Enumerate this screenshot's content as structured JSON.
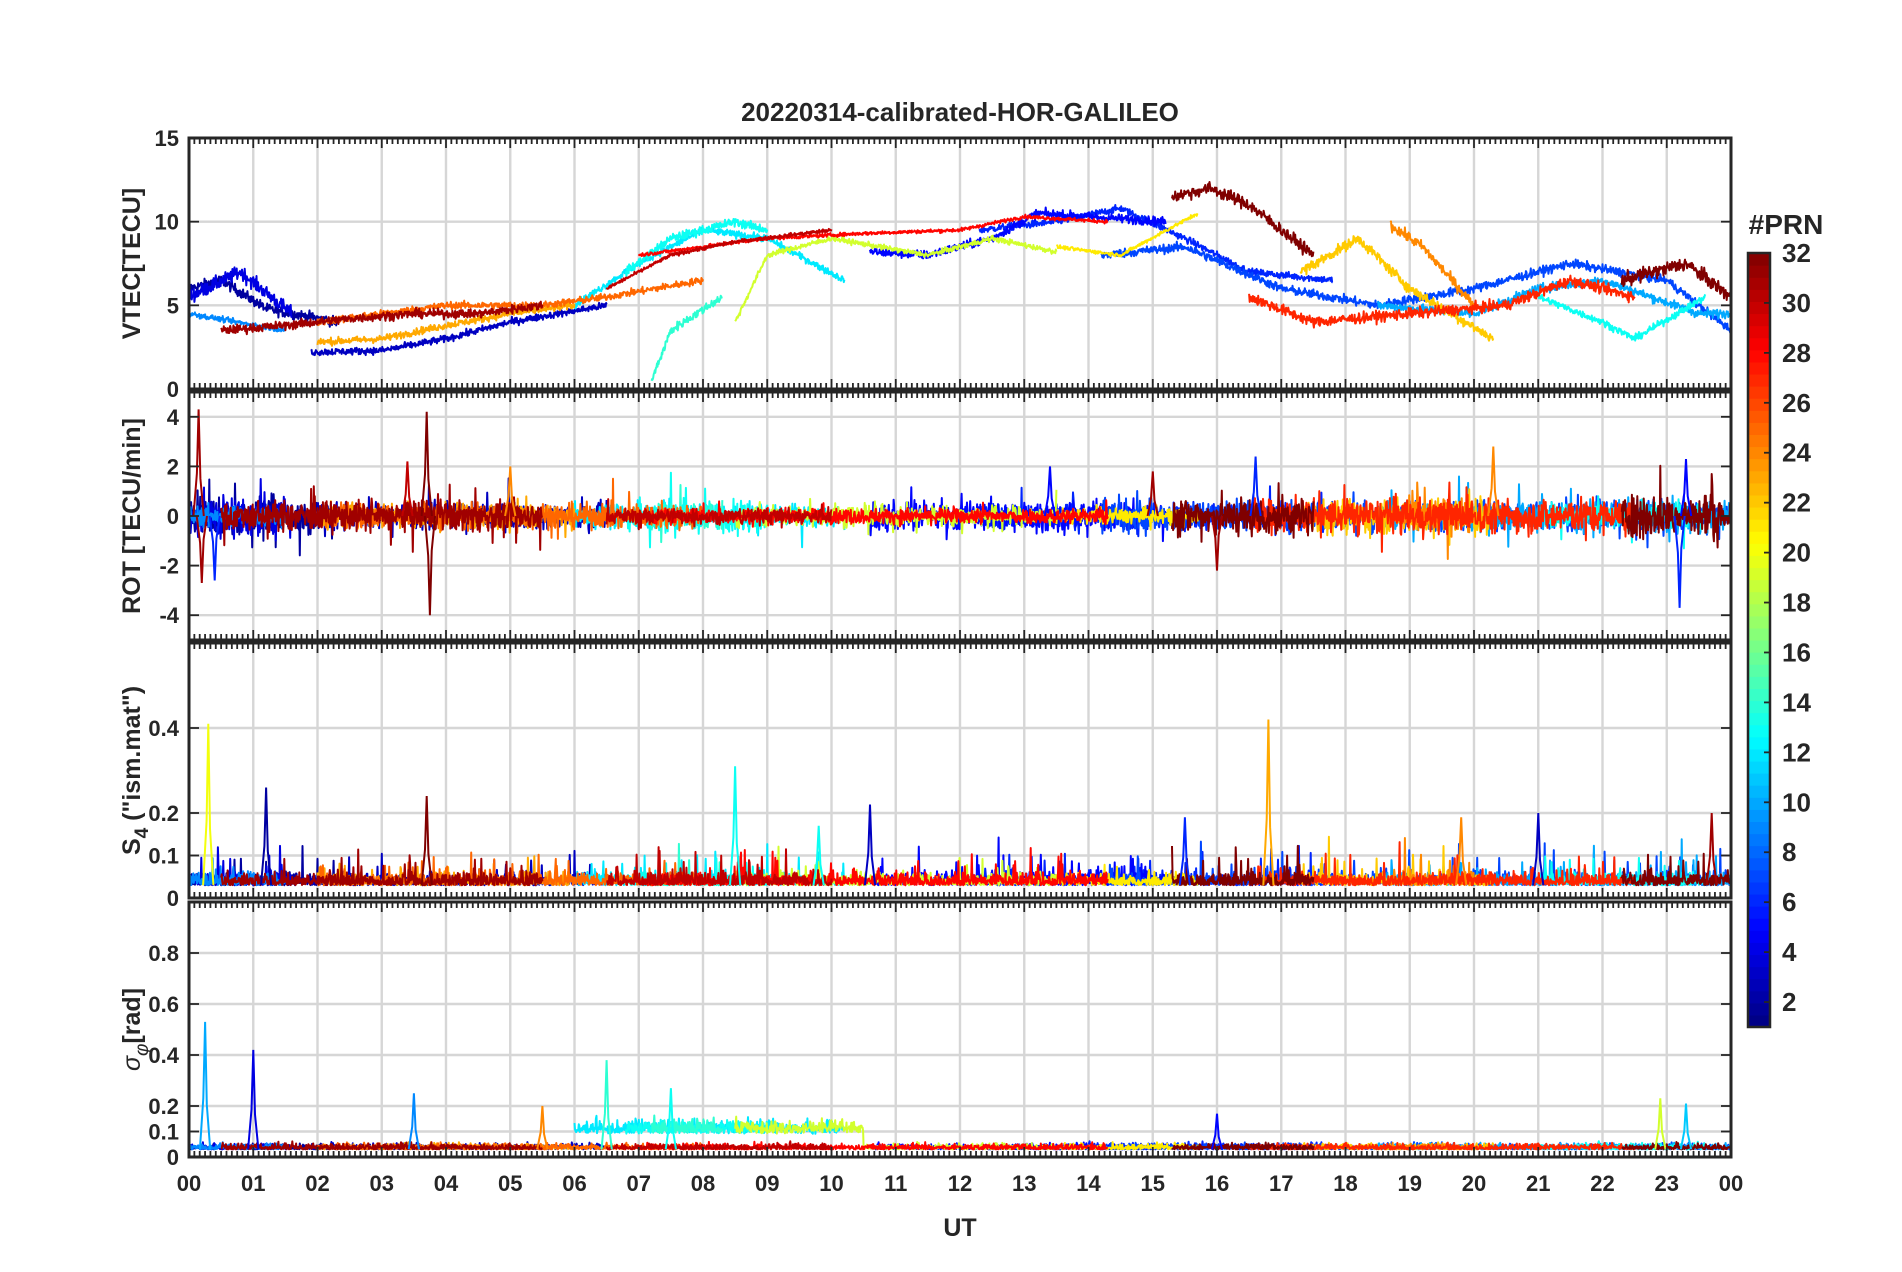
{
  "chart_data": {
    "type": "line",
    "title": "20220314-calibrated-HOR-GALILEO",
    "xlabel": "UT",
    "x_ticks": [
      "00",
      "01",
      "02",
      "03",
      "04",
      "05",
      "06",
      "07",
      "08",
      "09",
      "10",
      "11",
      "12",
      "13",
      "14",
      "15",
      "16",
      "17",
      "18",
      "19",
      "20",
      "21",
      "22",
      "23",
      "00"
    ],
    "xlim_hours": [
      0,
      24
    ],
    "colorbar": {
      "title": "#PRN",
      "range": [
        1,
        32
      ],
      "ticks": [
        2,
        4,
        6,
        8,
        10,
        12,
        14,
        16,
        18,
        20,
        22,
        24,
        26,
        28,
        30,
        32
      ],
      "colormap": "jet"
    },
    "panels": [
      {
        "id": "vtec",
        "ylabel": "VTEC[TECU]",
        "ylim": [
          0,
          15
        ],
        "yticks": [
          0,
          5,
          10,
          15
        ],
        "series": [
          {
            "prn": 2,
            "segment_hours": [
              0.0,
              2.3
            ],
            "trend": [
              [
                0.0,
                6.0
              ],
              [
                0.5,
                6.5
              ],
              [
                1.2,
                4.8
              ],
              [
                2.3,
                4.0
              ]
            ],
            "noise": 0.6
          },
          {
            "prn": 4,
            "segment_hours": [
              0.0,
              1.6
            ],
            "trend": [
              [
                0.0,
                5.5
              ],
              [
                0.8,
                7.0
              ],
              [
                1.6,
                4.5
              ]
            ],
            "noise": 0.8
          },
          {
            "prn": 6,
            "segment_hours": [
              12.3,
              17.8
            ],
            "trend": [
              [
                12.3,
                9.5
              ],
              [
                13.5,
                10.0
              ],
              [
                14.5,
                10.8
              ],
              [
                15.5,
                9.0
              ],
              [
                16.5,
                7.0
              ],
              [
                17.8,
                6.5
              ]
            ],
            "noise": 0.4
          },
          {
            "prn": 5,
            "segment_hours": [
              10.6,
              15.2
            ],
            "trend": [
              [
                10.6,
                8.2
              ],
              [
                11.5,
                8.0
              ],
              [
                12.5,
                9.0
              ],
              [
                13.2,
                10.5
              ],
              [
                14.0,
                10.3
              ],
              [
                15.2,
                10.0
              ]
            ],
            "noise": 0.5
          },
          {
            "prn": 3,
            "segment_hours": [
              1.9,
              6.5
            ],
            "trend": [
              [
                1.9,
                2.2
              ],
              [
                3.0,
                2.3
              ],
              [
                4.0,
                3.0
              ],
              [
                5.0,
                4.0
              ],
              [
                6.5,
                5.0
              ]
            ],
            "noise": 0.4
          },
          {
            "prn": 7,
            "segment_hours": [
              14.2,
              24.0
            ],
            "trend": [
              [
                14.2,
                8.0
              ],
              [
                15.5,
                8.5
              ],
              [
                17.0,
                6.0
              ],
              [
                18.5,
                5.0
              ],
              [
                20.0,
                6.0
              ],
              [
                21.5,
                7.5
              ],
              [
                23.0,
                6.5
              ],
              [
                24.0,
                3.5
              ]
            ],
            "noise": 0.5
          },
          {
            "prn": 9,
            "segment_hours": [
              0.0,
              1.5
            ],
            "trend": [
              [
                0.0,
                4.5
              ],
              [
                1.5,
                3.5
              ]
            ],
            "noise": 0.3
          },
          {
            "prn": 10,
            "segment_hours": [
              18.5,
              24.0
            ],
            "trend": [
              [
                18.5,
                5.0
              ],
              [
                20.0,
                4.5
              ],
              [
                21.0,
                6.0
              ],
              [
                22.0,
                6.5
              ],
              [
                23.5,
                4.5
              ],
              [
                24.0,
                4.5
              ]
            ],
            "noise": 0.5
          },
          {
            "prn": 12,
            "segment_hours": [
              6.0,
              10.2
            ],
            "trend": [
              [
                6.0,
                5.0
              ],
              [
                7.0,
                7.5
              ],
              [
                8.0,
                9.5
              ],
              [
                9.0,
                9.0
              ],
              [
                10.2,
                6.5
              ]
            ],
            "noise": 0.4
          },
          {
            "prn": 13,
            "segment_hours": [
              6.8,
              9.0
            ],
            "trend": [
              [
                6.8,
                7.0
              ],
              [
                7.5,
                9.0
              ],
              [
                8.5,
                10.0
              ],
              [
                9.0,
                9.5
              ]
            ],
            "noise": 0.5
          },
          {
            "prn": 13,
            "segment_hours": [
              21.0,
              23.6
            ],
            "trend": [
              [
                21.0,
                5.5
              ],
              [
                22.0,
                4.0
              ],
              [
                22.5,
                3.0
              ],
              [
                23.6,
                5.5
              ]
            ],
            "noise": 0.4
          },
          {
            "prn": 14,
            "segment_hours": [
              7.2,
              8.3
            ],
            "trend": [
              [
                7.2,
                0.5
              ],
              [
                7.5,
                3.5
              ],
              [
                8.3,
                5.5
              ]
            ],
            "noise": 0.5
          },
          {
            "prn": 19,
            "segment_hours": [
              8.5,
              13.5
            ],
            "trend": [
              [
                8.5,
                4.0
              ],
              [
                9.0,
                8.0
              ],
              [
                10.0,
                9.0
              ],
              [
                11.5,
                8.0
              ],
              [
                12.5,
                9.0
              ],
              [
                13.5,
                8.2
              ]
            ],
            "noise": 0.3
          },
          {
            "prn": 21,
            "segment_hours": [
              13.5,
              15.7
            ],
            "trend": [
              [
                13.5,
                8.5
              ],
              [
                14.5,
                8.0
              ],
              [
                15.7,
                10.5
              ]
            ],
            "noise": 0.2
          },
          {
            "prn": 22,
            "segment_hours": [
              17.3,
              20.3
            ],
            "trend": [
              [
                17.3,
                7.0
              ],
              [
                18.2,
                9.0
              ],
              [
                19.0,
                6.0
              ],
              [
                20.3,
                3.0
              ]
            ],
            "noise": 0.6
          },
          {
            "prn": 23,
            "segment_hours": [
              2.0,
              6.0
            ],
            "trend": [
              [
                2.0,
                2.8
              ],
              [
                3.0,
                3.0
              ],
              [
                4.0,
                3.8
              ],
              [
                5.0,
                4.5
              ],
              [
                6.0,
                5.0
              ]
            ],
            "noise": 0.4
          },
          {
            "prn": 24,
            "segment_hours": [
              18.7,
              20.0
            ],
            "trend": [
              [
                18.7,
                9.8
              ],
              [
                19.2,
                8.5
              ],
              [
                20.0,
                5.0
              ]
            ],
            "noise": 0.6
          },
          {
            "prn": 25,
            "segment_hours": [
              2.0,
              8.0
            ],
            "trend": [
              [
                2.0,
                4.0
              ],
              [
                3.0,
                4.5
              ],
              [
                4.0,
                5.0
              ],
              [
                5.5,
                5.0
              ],
              [
                6.5,
                5.5
              ],
              [
                8.0,
                6.5
              ]
            ],
            "noise": 0.4
          },
          {
            "prn": 27,
            "segment_hours": [
              16.5,
              22.5
            ],
            "trend": [
              [
                16.5,
                5.5
              ],
              [
                17.5,
                4.0
              ],
              [
                19.0,
                4.5
              ],
              [
                20.5,
                5.0
              ],
              [
                21.5,
                6.5
              ],
              [
                22.5,
                5.5
              ]
            ],
            "noise": 0.6
          },
          {
            "prn": 28,
            "segment_hours": [
              7.0,
              14.3
            ],
            "trend": [
              [
                7.0,
                8.0
              ],
              [
                8.0,
                8.5
              ],
              [
                9.0,
                9.0
              ],
              [
                10.5,
                9.3
              ],
              [
                12.0,
                9.5
              ],
              [
                13.0,
                10.3
              ],
              [
                14.3,
                10.0
              ]
            ],
            "noise": 0.2
          },
          {
            "prn": 30,
            "segment_hours": [
              6.5,
              10.0
            ],
            "trend": [
              [
                6.5,
                6.0
              ],
              [
                7.5,
                8.0
              ],
              [
                8.5,
                8.8
              ],
              [
                10.0,
                9.5
              ]
            ],
            "noise": 0.2
          },
          {
            "prn": 31,
            "segment_hours": [
              0.5,
              5.5
            ],
            "trend": [
              [
                0.5,
                3.5
              ],
              [
                1.5,
                3.8
              ],
              [
                2.5,
                4.2
              ],
              [
                3.5,
                4.5
              ],
              [
                4.5,
                4.5
              ],
              [
                5.5,
                5.0
              ]
            ],
            "noise": 0.5
          },
          {
            "prn": 32,
            "segment_hours": [
              15.3,
              17.5
            ],
            "trend": [
              [
                15.3,
                11.5
              ],
              [
                15.9,
                12.0
              ],
              [
                16.5,
                11.0
              ],
              [
                17.5,
                8.0
              ]
            ],
            "noise": 0.7
          },
          {
            "prn": 32,
            "segment_hours": [
              22.3,
              24.0
            ],
            "trend": [
              [
                22.3,
                6.5
              ],
              [
                23.3,
                7.5
              ],
              [
                24.0,
                5.5
              ]
            ],
            "noise": 0.8
          }
        ]
      },
      {
        "id": "rot",
        "ylabel": "ROT [TECU/min]",
        "ylim": [
          -5,
          5
        ],
        "yticks": [
          -4,
          -2,
          0,
          2,
          4
        ],
        "series_note": "noisy oscillation about 0 for every PRN track",
        "spikes": [
          [
            0.15,
            4.3,
            31
          ],
          [
            0.2,
            -2.7,
            31
          ],
          [
            3.7,
            4.2,
            32
          ],
          [
            3.75,
            -4.0,
            32
          ],
          [
            3.4,
            2.2,
            30
          ],
          [
            13.4,
            2.0,
            5
          ],
          [
            15.0,
            1.8,
            31
          ],
          [
            16.0,
            -2.2,
            31
          ],
          [
            16.6,
            2.4,
            6
          ],
          [
            20.3,
            2.8,
            24
          ],
          [
            23.3,
            2.3,
            5
          ],
          [
            23.2,
            -3.7,
            6
          ],
          [
            0.4,
            -2.6,
            6
          ],
          [
            5.0,
            2.0,
            24
          ]
        ]
      },
      {
        "id": "s4",
        "ylabel": "S4 (\"ism.mat\")",
        "ylim": [
          0,
          0.6
        ],
        "yticks": [
          0,
          0.1,
          0.2,
          0.4
        ],
        "ytick_labels": [
          "0",
          "0.1",
          "0.2",
          "0.4"
        ],
        "peaks": [
          [
            0.3,
            0.41,
            20
          ],
          [
            1.2,
            0.26,
            2
          ],
          [
            3.7,
            0.24,
            32
          ],
          [
            8.5,
            0.31,
            13
          ],
          [
            16.8,
            0.42,
            23
          ],
          [
            10.6,
            0.22,
            3
          ],
          [
            15.5,
            0.19,
            6
          ],
          [
            21.0,
            0.2,
            3
          ],
          [
            23.7,
            0.2,
            31
          ],
          [
            9.8,
            0.17,
            13
          ],
          [
            19.8,
            0.19,
            24
          ]
        ]
      },
      {
        "id": "sigma_phi",
        "ylabel": "σφ[rad]",
        "ylim": [
          0,
          1.0
        ],
        "yticks": [
          0,
          0.1,
          0.2,
          0.4,
          0.6,
          0.8
        ],
        "ytick_labels": [
          "0",
          "0.1",
          "0.2",
          "0.4",
          "0.6",
          "0.8"
        ],
        "peaks": [
          [
            0.25,
            0.53,
            10
          ],
          [
            1.0,
            0.42,
            4
          ],
          [
            3.5,
            0.25,
            9
          ],
          [
            6.5,
            0.38,
            14
          ],
          [
            7.5,
            0.27,
            13
          ],
          [
            22.9,
            0.23,
            19
          ],
          [
            23.3,
            0.21,
            11
          ],
          [
            5.5,
            0.2,
            24
          ],
          [
            16.0,
            0.17,
            5
          ]
        ]
      }
    ]
  }
}
